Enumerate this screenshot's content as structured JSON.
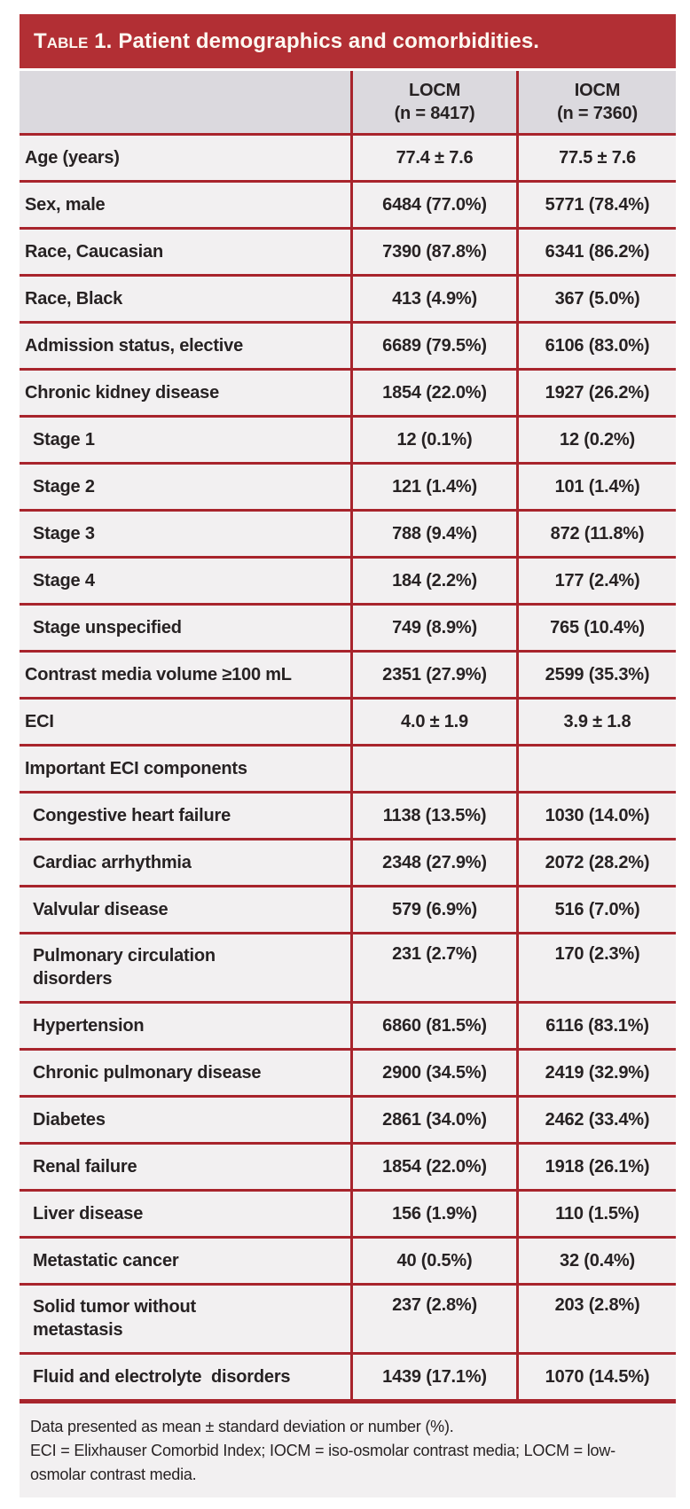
{
  "table": {
    "title": {
      "prefix": "Table 1.",
      "rest": "Patient demographics and comorbidities."
    },
    "columns": [
      {
        "name": "LOCM",
        "n": "(n = 8417)"
      },
      {
        "name": "IOCM",
        "n": "(n = 7360)"
      }
    ],
    "rows": [
      {
        "label": "Age (years)",
        "values": [
          "77.4 ± 7.6",
          "77.5 ± 7.6"
        ],
        "indent": false
      },
      {
        "label": "Sex, male",
        "values": [
          "6484 (77.0%)",
          "5771 (78.4%)"
        ],
        "indent": false
      },
      {
        "label": "Race, Caucasian",
        "values": [
          "7390 (87.8%)",
          "6341 (86.2%)"
        ],
        "indent": false
      },
      {
        "label": "Race, Black",
        "values": [
          "413 (4.9%)",
          "367 (5.0%)"
        ],
        "indent": false
      },
      {
        "label": "Admission status, elective",
        "values": [
          "6689 (79.5%)",
          "6106 (83.0%)"
        ],
        "indent": false
      },
      {
        "label": "Chronic kidney disease",
        "values": [
          "1854 (22.0%)",
          "1927 (26.2%)"
        ],
        "indent": false
      },
      {
        "label": "Stage 1",
        "values": [
          "12 (0.1%)",
          "12 (0.2%)"
        ],
        "indent": true
      },
      {
        "label": "Stage 2",
        "values": [
          "121 (1.4%)",
          "101 (1.4%)"
        ],
        "indent": true
      },
      {
        "label": "Stage 3",
        "values": [
          "788 (9.4%)",
          "872 (11.8%)"
        ],
        "indent": true
      },
      {
        "label": "Stage 4",
        "values": [
          "184 (2.2%)",
          "177 (2.4%)"
        ],
        "indent": true
      },
      {
        "label": "Stage unspecified",
        "values": [
          "749 (8.9%)",
          "765 (10.4%)"
        ],
        "indent": true
      },
      {
        "label": "Contrast media volume ≥100 mL",
        "values": [
          "2351 (27.9%)",
          "2599 (35.3%)"
        ],
        "indent": false
      },
      {
        "label": "ECI",
        "values": [
          "4.0 ± 1.9",
          "3.9 ± 1.8"
        ],
        "indent": false
      },
      {
        "label": "Important ECI components",
        "values": [
          "",
          ""
        ],
        "indent": false
      },
      {
        "label": "Congestive heart failure",
        "values": [
          "1138 (13.5%)",
          "1030 (14.0%)"
        ],
        "indent": true
      },
      {
        "label": "Cardiac arrhythmia",
        "values": [
          "2348 (27.9%)",
          "2072 (28.2%)"
        ],
        "indent": true
      },
      {
        "label": "Valvular disease",
        "values": [
          "579 (6.9%)",
          "516 (7.0%)"
        ],
        "indent": true
      },
      {
        "label": "Pulmonary circulation\ndisorders",
        "values": [
          "231 (2.7%)",
          "170 (2.3%)"
        ],
        "indent": true
      },
      {
        "label": "Hypertension",
        "values": [
          "6860 (81.5%)",
          "6116 (83.1%)"
        ],
        "indent": true
      },
      {
        "label": "Chronic pulmonary disease",
        "values": [
          "2900 (34.5%)",
          "2419 (32.9%)"
        ],
        "indent": true
      },
      {
        "label": "Diabetes",
        "values": [
          "2861 (34.0%)",
          "2462 (33.4%)"
        ],
        "indent": true
      },
      {
        "label": "Renal failure",
        "values": [
          "1854 (22.0%)",
          "1918 (26.1%)"
        ],
        "indent": true
      },
      {
        "label": "Liver disease",
        "values": [
          "156 (1.9%)",
          "110 (1.5%)"
        ],
        "indent": true
      },
      {
        "label": "Metastatic cancer",
        "values": [
          "40 (0.5%)",
          "32 (0.4%)"
        ],
        "indent": true
      },
      {
        "label": "Solid tumor without\nmetastasis",
        "values": [
          "237 (2.8%)",
          "203 (2.8%)"
        ],
        "indent": true
      },
      {
        "label": "Fluid and electrolyte  disorders",
        "values": [
          "1439 (17.1%)",
          "1070 (14.5%)"
        ],
        "indent": true
      }
    ],
    "footnotes": [
      "Data presented as mean ± standard deviation or number (%).",
      "ECI = Elixhauser Comorbid Index; IOCM = iso-osmolar contrast media; LOCM = low-osmolar contrast media."
    ],
    "colors": {
      "title_bar_red": "#b22f34",
      "rule_red": "#a8242c",
      "header_bg": "#dbd9de",
      "row_bg": "#f2f0f1",
      "title_text": "#fcf8f1",
      "body_text": "#272223"
    }
  }
}
